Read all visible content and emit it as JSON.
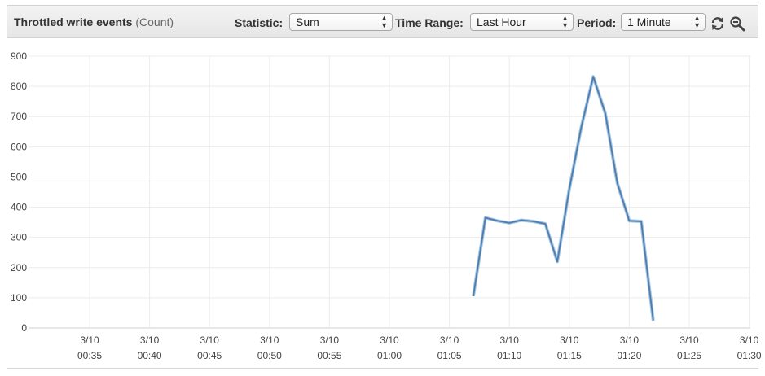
{
  "header": {
    "title": "Throttled write events",
    "unit": "(Count)",
    "statistic_label": "Statistic:",
    "statistic_value": "Sum",
    "time_range_label": "Time Range:",
    "time_range_value": "Last Hour",
    "period_label": "Period:",
    "period_value": "1 Minute",
    "refresh_icon": "refresh-icon",
    "zoom_icon": "zoom-out-icon"
  },
  "chart_data": {
    "type": "line",
    "ylim": [
      0,
      900
    ],
    "yticks": [
      "0",
      "100",
      "200",
      "300",
      "400",
      "500",
      "600",
      "700",
      "800",
      "900"
    ],
    "xticks": [
      {
        "date": "3/10",
        "time": "00:35"
      },
      {
        "date": "3/10",
        "time": "00:40"
      },
      {
        "date": "3/10",
        "time": "00:45"
      },
      {
        "date": "3/10",
        "time": "00:50"
      },
      {
        "date": "3/10",
        "time": "00:55"
      },
      {
        "date": "3/10",
        "time": "01:00"
      },
      {
        "date": "3/10",
        "time": "01:05"
      },
      {
        "date": "3/10",
        "time": "01:10"
      },
      {
        "date": "3/10",
        "time": "01:15"
      },
      {
        "date": "3/10",
        "time": "01:20"
      },
      {
        "date": "3/10",
        "time": "01:25"
      },
      {
        "date": "3/10",
        "time": "01:30"
      }
    ],
    "grid": true,
    "line_color": "#4a7eb0",
    "series": [
      {
        "x": [
          "01:07",
          "01:08",
          "01:09",
          "01:10",
          "01:11",
          "01:12",
          "01:13",
          "01:14",
          "01:15",
          "01:16",
          "01:17",
          "01:18",
          "01:19",
          "01:20",
          "01:21",
          "01:22"
        ],
        "values": [
          105,
          365,
          355,
          348,
          357,
          353,
          345,
          220,
          460,
          665,
          832,
          710,
          480,
          355,
          353,
          25
        ]
      }
    ]
  }
}
